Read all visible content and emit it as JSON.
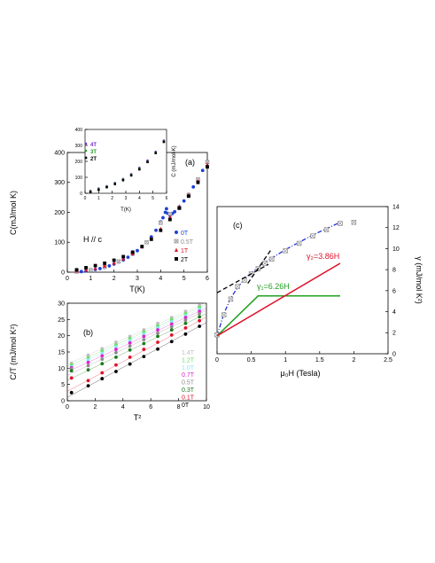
{
  "chart_data": [
    {
      "id": "a",
      "type": "scatter",
      "panel_label": "(a)",
      "annotation": "H // c",
      "xlabel": "T(K)",
      "ylabel": "C(mJ/mol K)",
      "xlim": [
        0,
        6
      ],
      "ylim": [
        0,
        400
      ],
      "xticks": [
        "0",
        "1",
        "2",
        "3",
        "4",
        "5",
        "6"
      ],
      "yticks": [
        "0",
        "100",
        "200",
        "300",
        "400"
      ],
      "legend_position": "right",
      "series": [
        {
          "name": "0T",
          "color": "#1f3fd6",
          "marker": "circle",
          "x": [
            0.4,
            0.6,
            0.8,
            1.0,
            1.2,
            1.4,
            1.6,
            1.8,
            2.0,
            2.2,
            2.4,
            2.6,
            2.8,
            3.0,
            3.2,
            3.4,
            3.6,
            3.8,
            4.0,
            4.1,
            4.2,
            4.25,
            4.3,
            4.4,
            4.5,
            4.6,
            4.8,
            5.0,
            5.2,
            5.4,
            5.6,
            5.8,
            6.0
          ],
          "y": [
            1,
            2,
            4,
            6,
            9,
            12,
            16,
            21,
            27,
            34,
            41,
            50,
            60,
            72,
            85,
            100,
            118,
            140,
            168,
            182,
            200,
            212,
            197,
            190,
            196,
            202,
            218,
            238,
            260,
            285,
            310,
            340,
            370
          ]
        },
        {
          "name": "0.5T",
          "color": "#8c8c8c",
          "marker": "square-x",
          "x": [
            0.4,
            1.0,
            1.6,
            2.2,
            2.8,
            3.4,
            4.0,
            4.4,
            4.8,
            5.2,
            5.6,
            6.0
          ],
          "y": [
            2,
            7,
            18,
            36,
            62,
            100,
            165,
            195,
            215,
            258,
            310,
            368
          ]
        },
        {
          "name": "1T",
          "color": "#e0122a",
          "marker": "triangle",
          "x": [
            0.4,
            0.8,
            1.2,
            1.6,
            2.0,
            2.4,
            2.8,
            3.2,
            3.6,
            4.0,
            4.4,
            4.8,
            5.2,
            5.6,
            6.0
          ],
          "y": [
            4,
            8,
            13,
            21,
            31,
            45,
            62,
            85,
            112,
            145,
            185,
            220,
            258,
            305,
            360
          ]
        },
        {
          "name": "2T",
          "color": "#000000",
          "marker": "square",
          "x": [
            0.4,
            0.8,
            1.2,
            1.6,
            2.0,
            2.4,
            2.8,
            3.2,
            3.6,
            4.0,
            4.4,
            4.8,
            5.2,
            5.6,
            6.0
          ],
          "y": [
            8,
            15,
            22,
            30,
            40,
            52,
            67,
            86,
            110,
            140,
            176,
            214,
            254,
            300,
            352
          ]
        }
      ]
    },
    {
      "id": "a_inset",
      "type": "scatter",
      "ylabel": "C (mJ/mol-K)",
      "xlabel": "T(K)",
      "xlim": [
        0,
        6
      ],
      "ylim": [
        0,
        400
      ],
      "xticks": [
        "0",
        "1",
        "2",
        "3",
        "4",
        "5",
        "6"
      ],
      "yticks": [
        "0",
        "100",
        "200",
        "300",
        "400"
      ],
      "legend_position": "top-left",
      "series": [
        {
          "name": "4T",
          "color": "#7a2bd6",
          "marker": "circle",
          "x": [
            0.4,
            1.0,
            1.6,
            2.2,
            2.8,
            3.4,
            4.0,
            4.6,
            5.2,
            5.8
          ],
          "y": [
            15,
            30,
            45,
            65,
            90,
            120,
            160,
            205,
            260,
            330
          ]
        },
        {
          "name": "3T",
          "color": "#22a022",
          "marker": "circle",
          "x": [
            0.4,
            1.0,
            1.6,
            2.2,
            2.8,
            3.4,
            4.0,
            4.6,
            5.2,
            5.8
          ],
          "y": [
            12,
            26,
            42,
            62,
            86,
            115,
            155,
            200,
            256,
            325
          ]
        },
        {
          "name": "2T",
          "color": "#000000",
          "marker": "square",
          "x": [
            0.4,
            1.0,
            1.6,
            2.2,
            2.8,
            3.4,
            4.0,
            4.6,
            5.2,
            5.8
          ],
          "y": [
            8,
            22,
            38,
            58,
            82,
            112,
            150,
            196,
            252,
            322
          ]
        }
      ]
    },
    {
      "id": "b",
      "type": "scatter",
      "panel_label": "(b)",
      "xlabel": "T²",
      "ylabel": "C/T (mJ/mol K²)",
      "xlim": [
        0,
        10
      ],
      "ylim": [
        0,
        30
      ],
      "xticks": [
        "0",
        "2",
        "4",
        "6",
        "8",
        "10"
      ],
      "yticks": [
        "0",
        "5",
        "10",
        "15",
        "20",
        "25",
        "30"
      ],
      "legend_position": "right",
      "series": [
        {
          "name": "1.4T",
          "color": "#bdbdbd",
          "x": [
            0.3,
            1.5,
            2.5,
            3.5,
            4.5,
            5.5,
            6.5,
            7.5,
            8.5,
            9.5
          ],
          "y": [
            11.5,
            14,
            16,
            18,
            19.8,
            21.8,
            23.8,
            25.6,
            27.5,
            29.3
          ]
        },
        {
          "name": "1.2T",
          "color": "#66e066",
          "x": [
            0.3,
            1.5,
            2.5,
            3.5,
            4.5,
            5.5,
            6.5,
            7.5,
            8.5,
            9.5
          ],
          "y": [
            11,
            13.2,
            15.3,
            17.2,
            19.1,
            21.1,
            23,
            24.9,
            26.8,
            28.7
          ]
        },
        {
          "name": "1.0T",
          "color": "#8ce8f0",
          "x": [
            0.3,
            1.5,
            2.5,
            3.5,
            4.5,
            5.5,
            6.5,
            7.5,
            8.5,
            9.5
          ],
          "y": [
            10.5,
            12.6,
            14.6,
            16.6,
            18.5,
            20.5,
            22.4,
            24.3,
            26.2,
            28.1
          ]
        },
        {
          "name": "0.7T",
          "color": "#e020d0",
          "x": [
            0.3,
            1.5,
            2.5,
            3.5,
            4.5,
            5.5,
            6.5,
            7.5,
            8.5,
            9.5
          ],
          "y": [
            10.2,
            11.8,
            13.8,
            15.8,
            17.8,
            19.8,
            21.8,
            23.6,
            25.6,
            27.5
          ]
        },
        {
          "name": "0.5T",
          "color": "#8c8c8c",
          "x": [
            0.3,
            1.5,
            2.5,
            3.5,
            4.5,
            5.5,
            6.5,
            7.5,
            8.5,
            9.5
          ],
          "y": [
            9.8,
            10.8,
            12.8,
            14.8,
            16.8,
            18.8,
            20.8,
            22.8,
            24.8,
            26.8
          ]
        },
        {
          "name": "0.3T",
          "color": "#1a7a1a",
          "x": [
            0.3,
            1.5,
            2.5,
            3.5,
            4.5,
            5.5,
            6.5,
            7.5,
            8.5,
            9.5
          ],
          "y": [
            9.2,
            9.5,
            11.4,
            13.4,
            15.6,
            17.6,
            19.8,
            21.8,
            23.8,
            25.8
          ]
        },
        {
          "name": "0.1T",
          "color": "#e0122a",
          "x": [
            0.3,
            1.5,
            2.5,
            3.5,
            4.5,
            5.5,
            6.5,
            7.5,
            8.5,
            9.5
          ],
          "y": [
            7,
            6.2,
            8.6,
            11,
            13.4,
            15.8,
            18,
            20.2,
            22.4,
            24.6
          ]
        },
        {
          "name": "0T",
          "color": "#000000",
          "x": [
            0.3,
            1.5,
            2.5,
            3.5,
            4.5,
            5.5,
            6.5,
            7.5,
            8.5,
            9.5
          ],
          "y": [
            2.5,
            4.6,
            6.8,
            9,
            11.3,
            13.6,
            15.9,
            18.2,
            20.5,
            22.9
          ]
        }
      ]
    },
    {
      "id": "c",
      "type": "line",
      "panel_label": "(c)",
      "xlabel": "μ₀H (Tesla)",
      "ylabel": "γ (mJ/mol K²)",
      "xlim": [
        0,
        2.5
      ],
      "ylim": [
        0,
        14
      ],
      "xticks": [
        "0",
        "0.5",
        "1",
        "1.5",
        "2",
        "2.5"
      ],
      "yticks": [
        "0",
        "2",
        "4",
        "6",
        "8",
        "10",
        "12",
        "14"
      ],
      "annotations": [
        "γ₁=6.26H",
        "γ₂=3.86H"
      ],
      "series": [
        {
          "color": "#2030d0",
          "style": "dash-dot",
          "x": [
            0,
            0.1,
            0.2,
            0.3,
            0.4,
            0.5,
            0.6,
            0.7,
            0.8,
            1.0,
            1.2,
            1.4,
            1.6,
            1.8
          ],
          "y": [
            1.7,
            3.8,
            5.3,
            6.3,
            7.1,
            7.7,
            8.2,
            8.7,
            9.1,
            9.9,
            10.6,
            11.3,
            11.9,
            12.5
          ]
        },
        {
          "color": "#8c8c8c",
          "marker": "square-x",
          "x": [
            0,
            0.1,
            0.2,
            0.3,
            0.4,
            0.5,
            0.6,
            0.7,
            0.8,
            1.0,
            1.2,
            1.4,
            1.6,
            1.8,
            2.0
          ],
          "y": [
            1.8,
            3.7,
            5.2,
            6.4,
            7.0,
            7.6,
            8.1,
            8.6,
            9.0,
            9.8,
            10.5,
            11.2,
            11.8,
            12.4,
            12.5
          ]
        },
        {
          "color": "#000000",
          "style": "dashed",
          "x": [
            0,
            0.75
          ],
          "y": [
            5.8,
            8.5
          ]
        },
        {
          "color": "#000000",
          "style": "dashed",
          "x": [
            0.45,
            0.8
          ],
          "y": [
            6.7,
            10.0
          ]
        },
        {
          "color": "#22a022",
          "style": "solid",
          "x": [
            0,
            0.6,
            1.8
          ],
          "y": [
            1.7,
            5.5,
            5.5
          ]
        },
        {
          "color": "#e0122a",
          "style": "solid",
          "x": [
            0,
            1.8
          ],
          "y": [
            1.7,
            8.6
          ]
        }
      ]
    }
  ]
}
